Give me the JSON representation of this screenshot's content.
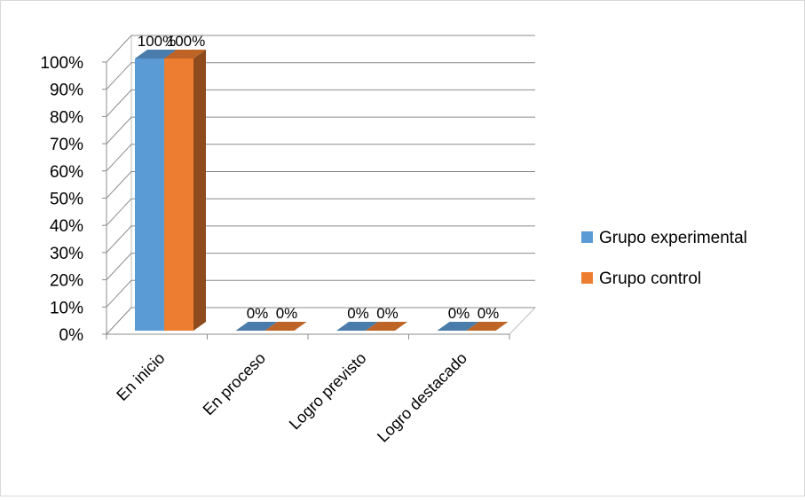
{
  "chart_data": {
    "type": "bar",
    "categories": [
      "En inicio",
      "En proceso",
      "Logro previsto",
      "Logro destacado"
    ],
    "series": [
      {
        "name": "Grupo experimental",
        "values": [
          100,
          0,
          0,
          0
        ],
        "labels": [
          "100%",
          "0%",
          "0%",
          "0%"
        ]
      },
      {
        "name": "Grupo control",
        "values": [
          100,
          0,
          0,
          0
        ],
        "labels": [
          "100%",
          "0%",
          "0%",
          "0%"
        ]
      }
    ],
    "yticks": [
      "0%",
      "10%",
      "20%",
      "30%",
      "40%",
      "50%",
      "60%",
      "70%",
      "80%",
      "90%",
      "100%"
    ],
    "ylim": [
      0,
      100
    ],
    "grid": true,
    "legend": "right",
    "style": "3d-clustered-column",
    "colors": {
      "experimental": "#5B9BD5",
      "control": "#ED7D31"
    }
  }
}
